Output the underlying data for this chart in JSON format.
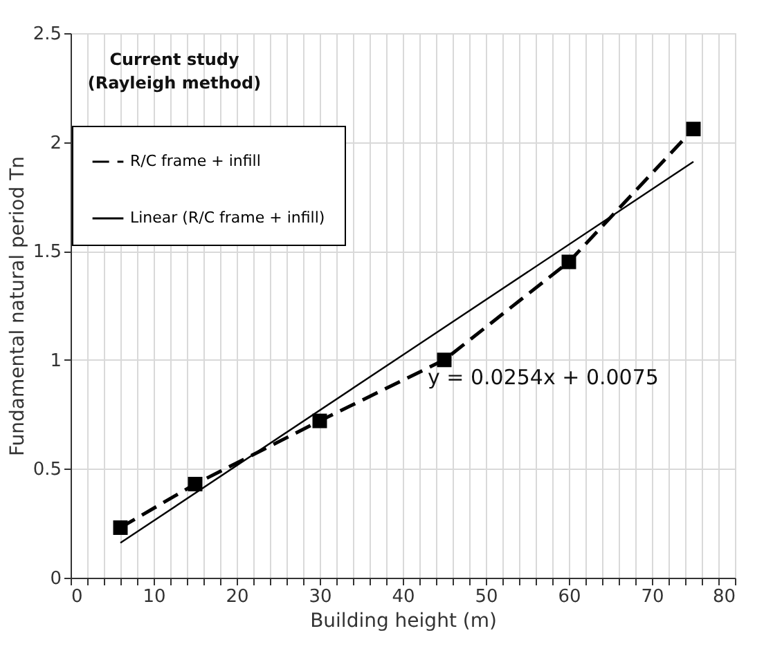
{
  "chart_data": {
    "type": "line",
    "xlabel": "Building height (m)",
    "ylabel": "Fundamental natural period Tn",
    "xlim": [
      0,
      80
    ],
    "ylim": [
      0,
      2.5
    ],
    "xticks": [
      0,
      {
        "value": 2,
        "label": null
      },
      {
        "value": 4,
        "label": null
      },
      {
        "value": 6,
        "label": null
      },
      {
        "value": 8,
        "label": null
      },
      10,
      {
        "value": 12,
        "label": null
      },
      {
        "value": 14,
        "label": null
      },
      {
        "value": 16,
        "label": null
      },
      {
        "value": 18,
        "label": null
      },
      20,
      {
        "value": 22,
        "label": null
      },
      {
        "value": 24,
        "label": null
      },
      {
        "value": 26,
        "label": null
      },
      {
        "value": 28,
        "label": null
      },
      30,
      {
        "value": 32,
        "label": null
      },
      {
        "value": 34,
        "label": null
      },
      {
        "value": 36,
        "label": null
      },
      {
        "value": 38,
        "label": null
      },
      40,
      {
        "value": 42,
        "label": null
      },
      {
        "value": 44,
        "label": null
      },
      {
        "value": 46,
        "label": null
      },
      {
        "value": 48,
        "label": null
      },
      50,
      {
        "value": 52,
        "label": null
      },
      {
        "value": 54,
        "label": null
      },
      {
        "value": 56,
        "label": null
      },
      {
        "value": 58,
        "label": null
      },
      60,
      {
        "value": 62,
        "label": null
      },
      {
        "value": 64,
        "label": null
      },
      {
        "value": 66,
        "label": null
      },
      {
        "value": 68,
        "label": null
      },
      70,
      {
        "value": 72,
        "label": null
      },
      {
        "value": 74,
        "label": null
      },
      {
        "value": 76,
        "label": null
      },
      {
        "value": 78,
        "label": null
      },
      80
    ],
    "yticks": [
      0,
      0.5,
      1,
      1.5,
      2,
      2.5
    ],
    "grid": true,
    "legend": "top left",
    "series": [
      {
        "name": "R/C frame + infill",
        "color": "#000000",
        "x": [
          6,
          15,
          30,
          45,
          60,
          75
        ],
        "values": [
          0.23,
          0.43,
          0.72,
          1.0,
          1.45,
          2.06
        ],
        "marker": "square",
        "line_style": "dashed"
      },
      {
        "name": "Linear (R/C frame + infill)",
        "color": "#000000",
        "type": "line",
        "x": [
          6,
          75
        ],
        "values": [
          0.16,
          1.91
        ],
        "marker": "none",
        "line_style": "solid"
      }
    ],
    "annotations": [
      "Current study\n(Rayleigh method)",
      "y = 0.0254x + 0.0075"
    ]
  }
}
